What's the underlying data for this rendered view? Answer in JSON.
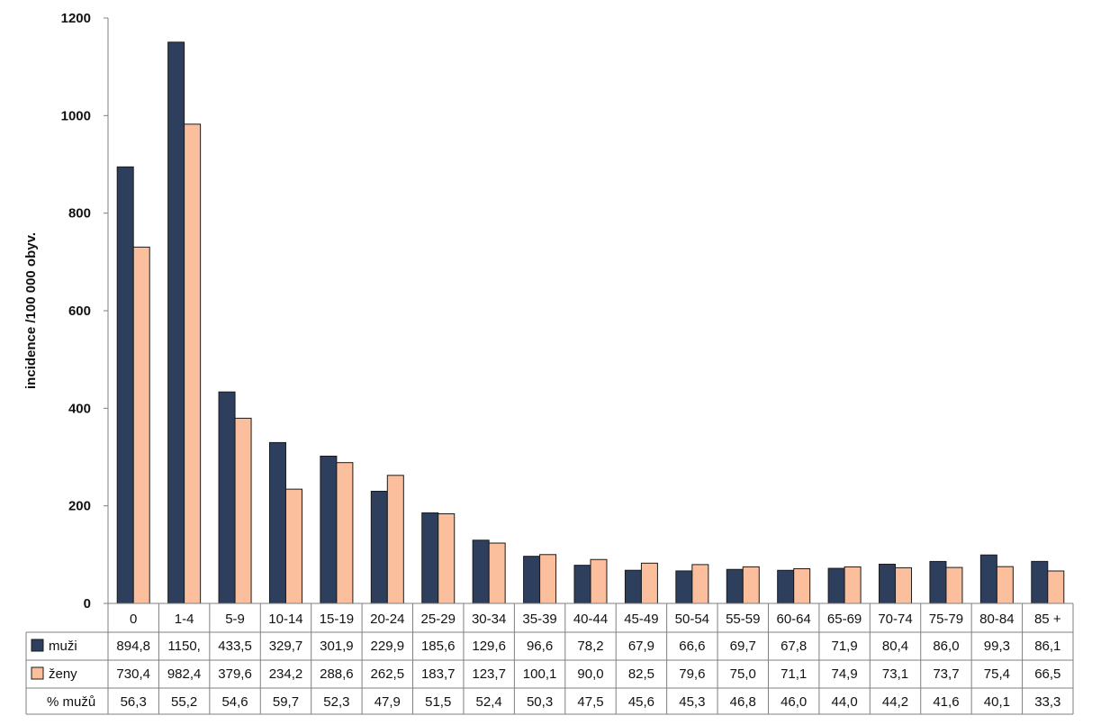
{
  "chart_data": {
    "type": "bar",
    "ylabel": "incidence /100 000 obyv.",
    "ylim": [
      0,
      1200
    ],
    "yticks": [
      "0",
      "200",
      "400",
      "600",
      "800",
      "1000",
      "1200"
    ],
    "grid": false,
    "legend": "in data table rows",
    "categories": [
      "0",
      "1-4",
      "5-9",
      "10-14",
      "15-19",
      "20-24",
      "25-29",
      "30-34",
      "35-39",
      "40-44",
      "45-49",
      "50-54",
      "55-59",
      "60-64",
      "65-69",
      "70-74",
      "75-79",
      "80-84",
      "85 +"
    ],
    "series": [
      {
        "name": "muži",
        "color": "#2e3f5e",
        "values": [
          894.8,
          1150.5,
          433.5,
          329.7,
          301.9,
          229.9,
          185.6,
          129.6,
          96.6,
          78.2,
          67.9,
          66.6,
          69.7,
          67.8,
          71.9,
          80.4,
          86.0,
          99.3,
          86.1
        ],
        "labels": [
          "894,8",
          "1150,",
          "433,5",
          "329,7",
          "301,9",
          "229,9",
          "185,6",
          "129,6",
          "96,6",
          "78,2",
          "67,9",
          "66,6",
          "69,7",
          "67,8",
          "71,9",
          "80,4",
          "86,0",
          "99,3",
          "86,1"
        ]
      },
      {
        "name": "ženy",
        "color": "#fbbf9e",
        "values": [
          730.4,
          982.4,
          379.6,
          234.2,
          288.6,
          262.5,
          183.7,
          123.7,
          100.1,
          90.0,
          82.5,
          79.6,
          75.0,
          71.1,
          74.9,
          73.1,
          73.7,
          75.4,
          66.5
        ],
        "labels": [
          "730,4",
          "982,4",
          "379,6",
          "234,2",
          "288,6",
          "262,5",
          "183,7",
          "123,7",
          "100,1",
          "90,0",
          "82,5",
          "79,6",
          "75,0",
          "71,1",
          "74,9",
          "73,1",
          "73,7",
          "75,4",
          "66,5"
        ]
      }
    ],
    "table_rows": [
      {
        "label": "% mužů",
        "values": [
          "56,3",
          "55,2",
          "54,6",
          "59,7",
          "52,3",
          "47,9",
          "51,5",
          "52,4",
          "50,3",
          "47,5",
          "45,6",
          "45,3",
          "46,8",
          "46,0",
          "44,0",
          "44,2",
          "41,6",
          "40,1",
          "33,3"
        ]
      }
    ]
  }
}
